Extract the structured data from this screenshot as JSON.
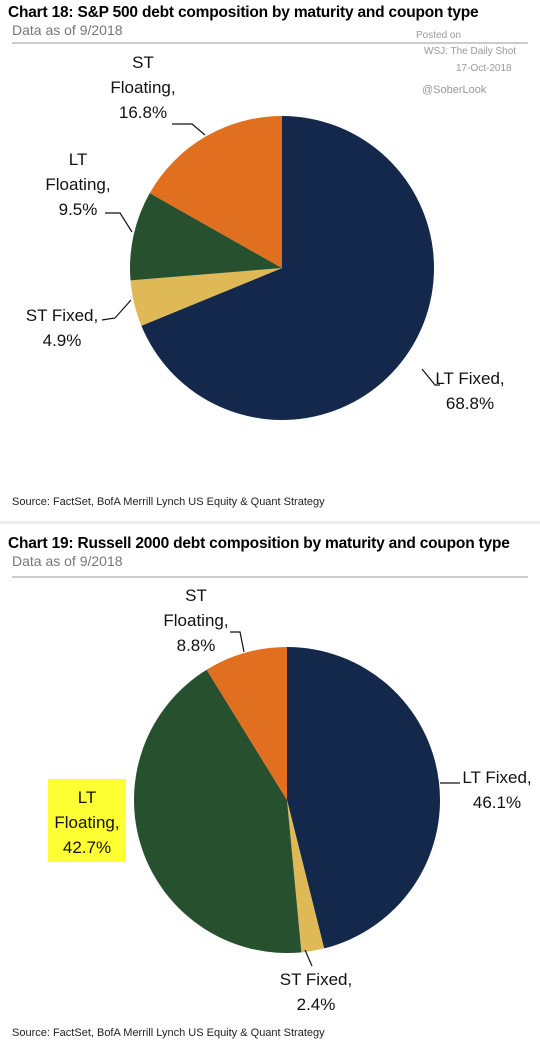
{
  "watermark": [
    "Posted on",
    "WSJ: The Daily Shot",
    "17-Oct-2018",
    "@SoberLook"
  ],
  "chart_data": [
    {
      "type": "pie",
      "title": "Chart 18: S&P 500 debt composition by maturity and coupon type",
      "subtitle": "Data as of 9/2018",
      "categories": [
        "LT Fixed,",
        "ST Fixed,",
        "LT Floating,",
        "ST Floating,"
      ],
      "values": [
        68.8,
        4.9,
        9.5,
        16.8
      ],
      "value_labels": [
        "68.8%",
        "4.9%",
        "9.5%",
        "16.8%"
      ],
      "colors": [
        "#14284b",
        "#e0b957",
        "#27502f",
        "#e07020"
      ],
      "source": "Source:  FactSet, BofA Merrill Lynch US Equity & Quant Strategy"
    },
    {
      "type": "pie",
      "title": "Chart 19: Russell 2000 debt composition by maturity and coupon type",
      "subtitle": "Data as of 9/2018",
      "categories": [
        "LT Fixed,",
        "ST Fixed,",
        "LT Floating,",
        "ST Floating,"
      ],
      "values": [
        46.1,
        2.4,
        42.7,
        8.8
      ],
      "value_labels": [
        "46.1%",
        "2.4%",
        "42.7%",
        "8.8%"
      ],
      "colors": [
        "#14284b",
        "#e0b957",
        "#27502f",
        "#e07020"
      ],
      "source": "Source:  FactSet, BofA Merrill Lynch US Equity & Quant Strategy"
    }
  ]
}
